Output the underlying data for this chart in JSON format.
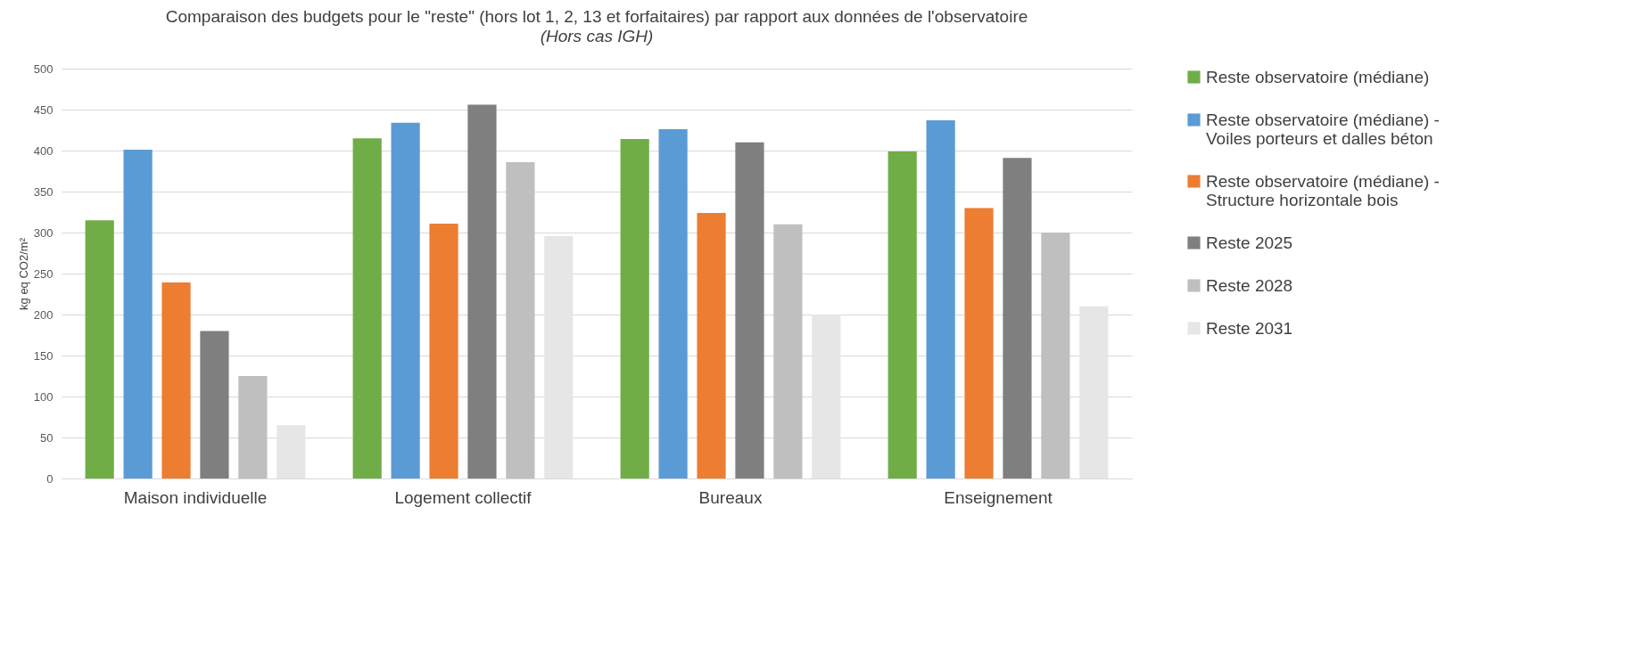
{
  "chart_data": {
    "type": "bar",
    "title": "Comparaison des budgets pour le \"reste\" (hors lot 1, 2, 13 et forfaitaires) par rapport aux données de l'observatoire",
    "subtitle": "(Hors cas IGH)",
    "ylabel": "kg eq CO2/m²",
    "categories": [
      "Maison individuelle",
      "Logement collectif",
      "Bureaux",
      "Enseignement"
    ],
    "series": [
      {
        "name": "Reste observatoire (médiane)",
        "color": "#70ad47",
        "values": [
          315,
          415,
          414,
          399
        ]
      },
      {
        "name": "Reste observatoire (médiane) - Voiles porteurs et dalles béton",
        "color": "#5b9bd5",
        "values": [
          401,
          434,
          426,
          437
        ]
      },
      {
        "name": "Reste observatoire (médiane) - Structure horizontale bois",
        "color": "#ed7d31",
        "values": [
          239,
          311,
          324,
          330
        ]
      },
      {
        "name": "Reste 2025",
        "color": "#7f7f7f",
        "values": [
          180,
          456,
          410,
          391
        ]
      },
      {
        "name": "Reste 2028",
        "color": "#bfbfbf",
        "values": [
          125,
          386,
          310,
          300
        ]
      },
      {
        "name": "Reste 2031",
        "color": "#e6e6e6",
        "values": [
          65,
          296,
          200,
          210
        ]
      }
    ],
    "ylim": [
      0,
      500
    ],
    "yticks": [
      0,
      50,
      100,
      150,
      200,
      250,
      300,
      350,
      400,
      450,
      500
    ],
    "grid": "y",
    "legend": "right"
  }
}
